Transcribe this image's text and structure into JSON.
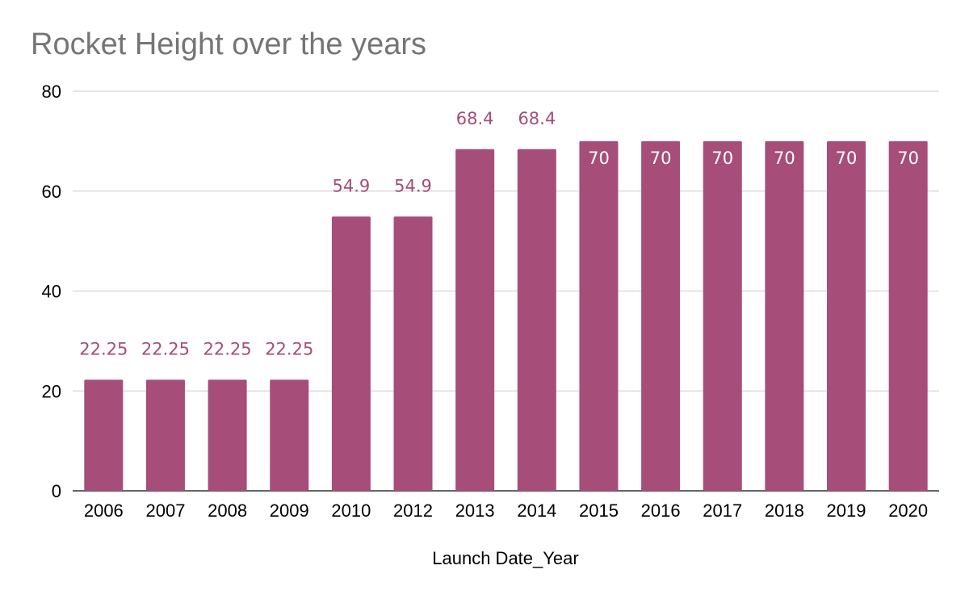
{
  "chart_data": {
    "type": "bar",
    "title": "Rocket Height over the years",
    "xlabel": "Launch Date_Year",
    "ylabel": "",
    "categories": [
      "2006",
      "2007",
      "2008",
      "2009",
      "2010",
      "2012",
      "2013",
      "2014",
      "2015",
      "2016",
      "2017",
      "2018",
      "2019",
      "2020"
    ],
    "values": [
      22.25,
      22.25,
      22.25,
      22.25,
      54.9,
      54.9,
      68.4,
      68.4,
      70,
      70,
      70,
      70,
      70,
      70
    ],
    "data_labels": [
      "22.25",
      "22.25",
      "22.25",
      "22.25",
      "54.9",
      "54.9",
      "68.4",
      "68.4",
      "70",
      "70",
      "70",
      "70",
      "70",
      "70"
    ],
    "ylim": [
      0,
      80
    ],
    "yticks": [
      0,
      20,
      40,
      60,
      80
    ],
    "grid": true,
    "legend": "none",
    "colors": {
      "bar": "#a64d79",
      "label_outside": "#a64d79",
      "label_inside": "#ffffff",
      "title": "#757575",
      "grid": "#cccccc",
      "axis": "#333333"
    }
  }
}
